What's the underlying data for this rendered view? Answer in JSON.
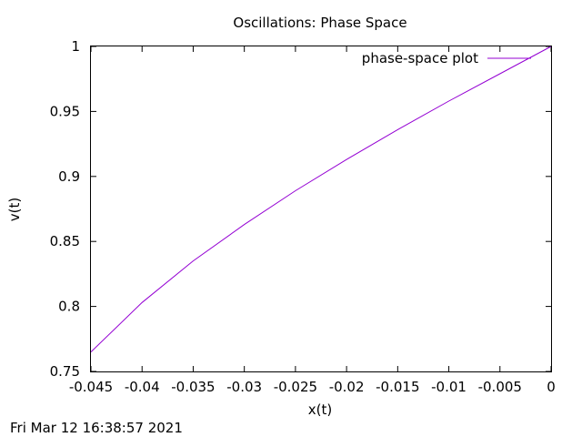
{
  "chart_data": {
    "type": "line",
    "title": "Oscillations: Phase Space",
    "xlabel": "x(t)",
    "ylabel": "v(t)",
    "xlim": [
      -0.045,
      0
    ],
    "ylim": [
      0.75,
      1
    ],
    "xticks": [
      "-0.045",
      "-0.04",
      "-0.035",
      "-0.03",
      "-0.025",
      "-0.02",
      "-0.015",
      "-0.01",
      "-0.005",
      "0"
    ],
    "yticks": [
      "0.75",
      "0.8",
      "0.85",
      "0.9",
      "0.95",
      "1"
    ],
    "grid": false,
    "legend_position": "top-right",
    "series": [
      {
        "name": "phase-space plot",
        "color": "#9400d3",
        "x": [
          -0.045,
          -0.04,
          -0.035,
          -0.03,
          -0.025,
          -0.02,
          -0.015,
          -0.01,
          -0.005,
          0
        ],
        "y": [
          0.765,
          0.803,
          0.835,
          0.863,
          0.889,
          0.913,
          0.936,
          0.958,
          0.979,
          1.0
        ]
      }
    ]
  },
  "footer": {
    "timestamp": "Fri Mar 12 16:38:57 2021"
  }
}
